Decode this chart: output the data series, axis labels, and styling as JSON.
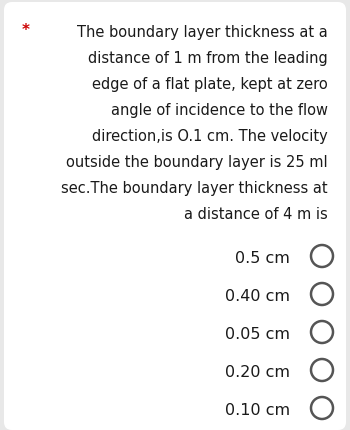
{
  "background_color": "#e8e8e8",
  "card_color": "#ffffff",
  "asterisk": "*",
  "asterisk_color": "#cc0000",
  "question_text_lines": [
    "The boundary layer thickness at a",
    "distance of 1 m from the leading",
    "edge of a flat plate, kept at zero",
    "angle of incidence to the flow",
    "direction,is O.1 cm. The velocity",
    "outside the boundary layer is 25 ml",
    "sec.The boundary layer thickness at",
    "a distance of 4 m is"
  ],
  "options": [
    "0.5 cm",
    "0.40 cm",
    "0.05 cm",
    "0.20 cm",
    "0.10 cm"
  ],
  "text_color": "#1a1a1a",
  "option_text_color": "#1a1a1a",
  "circle_edge_color": "#555555",
  "circle_face_color": "#ffffff",
  "question_fontsize": 10.5,
  "option_fontsize": 11.5,
  "asterisk_fontsize": 11
}
